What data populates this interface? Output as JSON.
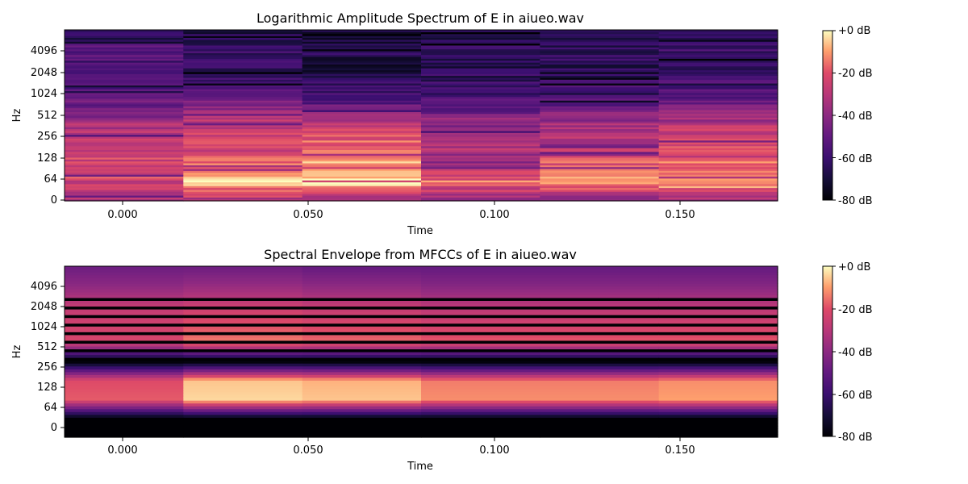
{
  "chart_data": [
    {
      "type": "heatmap",
      "title": "Logarithmic Amplitude Spectrum of E in aiueo.wav",
      "xlabel": "Time",
      "ylabel": "Hz",
      "x_tick_labels": [
        "0.000",
        "0.050",
        "0.100",
        "0.150"
      ],
      "x_ticks": [
        0.0,
        0.05,
        0.1,
        0.15
      ],
      "xlim": [
        -0.016,
        0.176
      ],
      "y_tick_labels": [
        "0",
        "64",
        "128",
        "256",
        "512",
        "1024",
        "2048",
        "4096"
      ],
      "y_scale": "symlog",
      "time_frames": [
        0.0,
        0.032,
        0.064,
        0.096,
        0.128,
        0.16
      ],
      "colormap": "magma",
      "colorbar": {
        "labels": [
          "+0 dB",
          "-20 dB",
          "-40 dB",
          "-60 dB",
          "-80 dB"
        ],
        "range_db": [
          -80,
          0
        ]
      },
      "band_profiles_db": [
        {
          "frame": 0.0,
          "values": [
            -30,
            -24,
            -24,
            -28,
            -32,
            -48,
            -56,
            -60,
            -52,
            -64
          ]
        },
        {
          "frame": 0.032,
          "values": [
            -34,
            -6,
            -14,
            -20,
            -28,
            -44,
            -58,
            -62,
            -60,
            -66
          ]
        },
        {
          "frame": 0.064,
          "values": [
            -38,
            -2,
            -10,
            -18,
            -26,
            -50,
            -62,
            -68,
            -64,
            -72
          ]
        },
        {
          "frame": 0.096,
          "values": [
            -42,
            -14,
            -38,
            -30,
            -36,
            -52,
            -60,
            -66,
            -62,
            -70
          ]
        },
        {
          "frame": 0.128,
          "values": [
            -44,
            -10,
            -20,
            -30,
            -34,
            -50,
            -58,
            -66,
            -62,
            -70
          ]
        },
        {
          "frame": 0.16,
          "values": [
            -36,
            -8,
            -16,
            -24,
            -30,
            -46,
            -56,
            -62,
            -58,
            -66
          ]
        }
      ]
    },
    {
      "type": "heatmap",
      "title": "Spectral Envelope from MFCCs of E in aiueo.wav",
      "xlabel": "Time",
      "ylabel": "Hz",
      "x_tick_labels": [
        "0.000",
        "0.050",
        "0.100",
        "0.150"
      ],
      "x_ticks": [
        0.0,
        0.05,
        0.1,
        0.15
      ],
      "xlim": [
        -0.016,
        0.176
      ],
      "y_tick_labels": [
        "0",
        "64",
        "128",
        "256",
        "512",
        "1024",
        "2048",
        "4096"
      ],
      "y_scale": "symlog",
      "time_frames": [
        0.0,
        0.032,
        0.064,
        0.096,
        0.128,
        0.16
      ],
      "colormap": "magma",
      "colorbar": {
        "labels": [
          "+0 dB",
          "-20 dB",
          "-40 dB",
          "-60 dB",
          "-80 dB"
        ],
        "range_db": [
          -80,
          0
        ]
      },
      "band_profiles_db": [
        {
          "frame": 0.0,
          "values": [
            -80,
            -80,
            -18,
            -20,
            -80,
            -22,
            -24,
            -28,
            -40,
            -48
          ]
        },
        {
          "frame": 0.032,
          "values": [
            -80,
            -80,
            -4,
            -6,
            -80,
            -14,
            -20,
            -26,
            -38,
            -48
          ]
        },
        {
          "frame": 0.064,
          "values": [
            -80,
            -80,
            -6,
            -8,
            -80,
            -16,
            -22,
            -28,
            -40,
            -50
          ]
        },
        {
          "frame": 0.096,
          "values": [
            -80,
            -80,
            -12,
            -14,
            -80,
            -18,
            -24,
            -30,
            -42,
            -50
          ]
        },
        {
          "frame": 0.128,
          "values": [
            -80,
            -80,
            -12,
            -14,
            -80,
            -18,
            -24,
            -30,
            -42,
            -50
          ]
        },
        {
          "frame": 0.16,
          "values": [
            -80,
            -80,
            -10,
            -12,
            -80,
            -18,
            -24,
            -30,
            -42,
            -50
          ]
        }
      ]
    }
  ]
}
